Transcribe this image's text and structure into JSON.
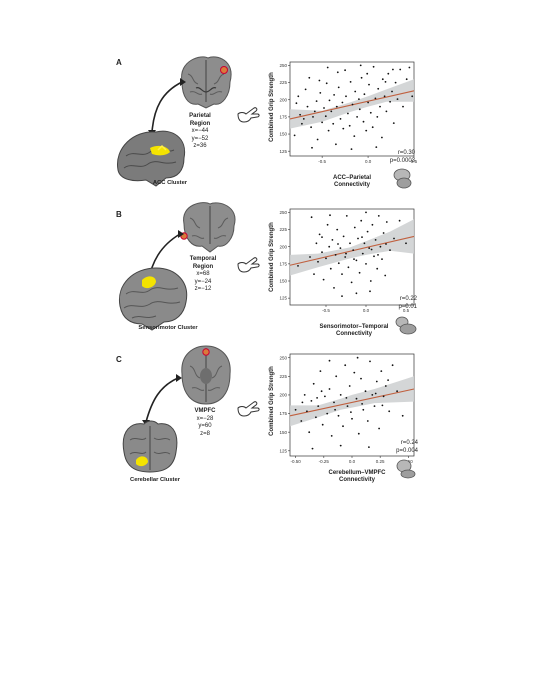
{
  "panels": [
    {
      "letter": "A",
      "region_name": "Parietal",
      "region_name2": "Region",
      "coords": [
        "x=−44",
        "y=−52",
        "z=36"
      ],
      "cluster": "ACC Cluster",
      "r_text": "r=0.30",
      "p_text": "p=0.0003"
    },
    {
      "letter": "B",
      "region_name": "Temporal",
      "region_name2": "Region",
      "coords": [
        "x=68",
        "y=−24",
        "z=−12"
      ],
      "cluster": "Sensorimotor Cluster",
      "r_text": "r=0.22",
      "p_text": "p=0.01"
    },
    {
      "letter": "C",
      "region_name": "VMPFC",
      "region_name2": "",
      "coords": [
        "x=−28",
        "y=60",
        "z=8"
      ],
      "cluster": "Cerebellar Cluster",
      "r_text": "r=0.24",
      "p_text": "p=0.004"
    }
  ],
  "chart_data": [
    {
      "type": "scatter",
      "ylabel": "Combined Grip Strength",
      "xlabel_line1": "ACC–Parietal",
      "xlabel_line2": "Connectivity",
      "xlim": [
        -0.85,
        0.5
      ],
      "ylim": [
        118,
        255
      ],
      "xticks": [
        "-0.5",
        "0.0",
        "0.5"
      ],
      "xtick_values": [
        -0.5,
        0.0,
        0.5
      ],
      "yticks": [
        "125",
        "150",
        "175",
        "200",
        "225",
        "250"
      ],
      "ytick_values": [
        125,
        150,
        175,
        200,
        225,
        250
      ],
      "fit": {
        "x": [
          -0.85,
          0.5
        ],
        "y": [
          172,
          213
        ]
      },
      "ci": {
        "x": [
          -0.85,
          -0.5,
          -0.2,
          0.0,
          0.2,
          0.5
        ],
        "upper": [
          186,
          184,
          196,
          205,
          215,
          230
        ],
        "lower": [
          158,
          168,
          182,
          190,
          197,
          197
        ]
      },
      "color_fit": "#c0603f",
      "color_ci": "#cfd2d3",
      "color_points": "#111111",
      "points": [
        [
          -0.8,
          148
        ],
        [
          -0.78,
          195
        ],
        [
          -0.76,
          205
        ],
        [
          -0.74,
          178
        ],
        [
          -0.72,
          165
        ],
        [
          -0.7,
          172
        ],
        [
          -0.68,
          215
        ],
        [
          -0.66,
          190
        ],
        [
          -0.64,
          232
        ],
        [
          -0.62,
          160
        ],
        [
          -0.6,
          175
        ],
        [
          -0.58,
          183
        ],
        [
          -0.56,
          198
        ],
        [
          -0.55,
          142
        ],
        [
          -0.52,
          210
        ],
        [
          -0.5,
          167
        ],
        [
          -0.48,
          188
        ],
        [
          -0.46,
          176
        ],
        [
          -0.45,
          224
        ],
        [
          -0.43,
          155
        ],
        [
          -0.42,
          199
        ],
        [
          -0.4,
          183
        ],
        [
          -0.38,
          165
        ],
        [
          -0.37,
          207
        ],
        [
          -0.35,
          135
        ],
        [
          -0.34,
          190
        ],
        [
          -0.32,
          218
        ],
        [
          -0.3,
          172
        ],
        [
          -0.28,
          196
        ],
        [
          -0.27,
          158
        ],
        [
          -0.25,
          243
        ],
        [
          -0.24,
          205
        ],
        [
          -0.22,
          180
        ],
        [
          -0.2,
          162
        ],
        [
          -0.19,
          226
        ],
        [
          -0.17,
          193
        ],
        [
          -0.15,
          147
        ],
        [
          -0.14,
          212
        ],
        [
          -0.12,
          175
        ],
        [
          -0.1,
          201
        ],
        [
          -0.09,
          186
        ],
        [
          -0.07,
          232
        ],
        [
          -0.05,
          168
        ],
        [
          -0.04,
          208
        ],
        [
          -0.02,
          155
        ],
        [
          0.0,
          196
        ],
        [
          0.01,
          222
        ],
        [
          0.03,
          181
        ],
        [
          0.05,
          160
        ],
        [
          0.06,
          248
        ],
        [
          0.08,
          202
        ],
        [
          0.1,
          175
        ],
        [
          0.11,
          216
        ],
        [
          0.13,
          190
        ],
        [
          0.15,
          145
        ],
        [
          0.16,
          230
        ],
        [
          0.18,
          205
        ],
        [
          0.2,
          183
        ],
        [
          0.22,
          238
        ],
        [
          0.24,
          197
        ],
        [
          0.26,
          212
        ],
        [
          0.28,
          166
        ],
        [
          0.3,
          225
        ],
        [
          0.32,
          201
        ],
        [
          0.35,
          244
        ],
        [
          0.38,
          190
        ],
        [
          0.42,
          230
        ],
        [
          0.45,
          247
        ],
        [
          0.48,
          205
        ],
        [
          -0.33,
          240
        ],
        [
          -0.61,
          130
        ],
        [
          -0.18,
          128
        ],
        [
          0.09,
          131
        ],
        [
          -0.44,
          247
        ],
        [
          -0.01,
          238
        ],
        [
          0.27,
          244
        ],
        [
          -0.53,
          228
        ],
        [
          -0.08,
          250
        ],
        [
          0.19,
          226
        ]
      ]
    },
    {
      "type": "scatter",
      "ylabel": "Combined Grip Strength",
      "xlabel_line1": "Sensorimotor–Temporal",
      "xlabel_line2": "Connectivity",
      "xlim": [
        -0.95,
        0.6
      ],
      "ylim": [
        115,
        255
      ],
      "xticks": [
        "-0.5",
        "0.0",
        "0.5"
      ],
      "xtick_values": [
        -0.5,
        0.0,
        0.5
      ],
      "yticks": [
        "125",
        "150",
        "175",
        "200",
        "225",
        "250"
      ],
      "ytick_values": [
        125,
        150,
        175,
        200,
        225,
        250
      ],
      "fit": {
        "x": [
          -0.95,
          0.6
        ],
        "y": [
          173,
          215
        ]
      },
      "ci": {
        "x": [
          -0.95,
          -0.6,
          -0.2,
          0.0,
          0.3,
          0.6
        ],
        "upper": [
          188,
          190,
          199,
          208,
          222,
          240
        ],
        "lower": [
          158,
          170,
          183,
          188,
          194,
          190
        ]
      },
      "color_fit": "#c0603f",
      "color_ci": "#cfd2d3",
      "color_points": "#111111",
      "points": [
        [
          -0.85,
          172
        ],
        [
          -0.7,
          185
        ],
        [
          -0.68,
          243
        ],
        [
          -0.65,
          160
        ],
        [
          -0.62,
          205
        ],
        [
          -0.6,
          178
        ],
        [
          -0.58,
          218
        ],
        [
          -0.55,
          192
        ],
        [
          -0.53,
          152
        ],
        [
          -0.5,
          183
        ],
        [
          -0.48,
          232
        ],
        [
          -0.46,
          200
        ],
        [
          -0.44,
          168
        ],
        [
          -0.42,
          210
        ],
        [
          -0.4,
          140
        ],
        [
          -0.38,
          188
        ],
        [
          -0.36,
          225
        ],
        [
          -0.34,
          176
        ],
        [
          -0.32,
          198
        ],
        [
          -0.3,
          160
        ],
        [
          -0.28,
          215
        ],
        [
          -0.26,
          185
        ],
        [
          -0.24,
          245
        ],
        [
          -0.22,
          170
        ],
        [
          -0.2,
          205
        ],
        [
          -0.18,
          148
        ],
        [
          -0.16,
          195
        ],
        [
          -0.14,
          228
        ],
        [
          -0.12,
          180
        ],
        [
          -0.1,
          212
        ],
        [
          -0.08,
          162
        ],
        [
          -0.06,
          238
        ],
        [
          -0.04,
          190
        ],
        [
          -0.02,
          205
        ],
        [
          0.0,
          175
        ],
        [
          0.02,
          222
        ],
        [
          0.04,
          198
        ],
        [
          0.06,
          150
        ],
        [
          0.08,
          232
        ],
        [
          0.1,
          186
        ],
        [
          0.12,
          210
        ],
        [
          0.14,
          168
        ],
        [
          0.16,
          245
        ],
        [
          0.18,
          200
        ],
        [
          0.2,
          182
        ],
        [
          0.22,
          220
        ],
        [
          0.24,
          158
        ],
        [
          0.26,
          236
        ],
        [
          0.3,
          195
        ],
        [
          0.35,
          212
        ],
        [
          0.42,
          238
        ],
        [
          0.5,
          205
        ],
        [
          -0.3,
          128
        ],
        [
          -0.12,
          132
        ],
        [
          0.05,
          135
        ],
        [
          -0.45,
          246
        ],
        [
          0.0,
          250
        ],
        [
          -0.25,
          190
        ],
        [
          -0.15,
          182
        ],
        [
          -0.05,
          214
        ],
        [
          0.07,
          196
        ],
        [
          -0.35,
          204
        ],
        [
          -0.55,
          214
        ],
        [
          0.15,
          188
        ],
        [
          0.25,
          204
        ]
      ]
    },
    {
      "type": "scatter",
      "ylabel": "Combined Grip Strength",
      "xlabel_line1": "Cerebellum–VMPFC",
      "xlabel_line2": "Connectivity",
      "xlim": [
        -0.55,
        0.55
      ],
      "ylim": [
        118,
        255
      ],
      "xticks": [
        "-0.50",
        "-0.25",
        "0.0",
        "0.25",
        "0.50"
      ],
      "xtick_values": [
        -0.5,
        -0.25,
        0.0,
        0.25,
        0.5
      ],
      "yticks": [
        "125",
        "150",
        "175",
        "200",
        "225",
        "250"
      ],
      "ytick_values": [
        125,
        150,
        175,
        200,
        225,
        250
      ],
      "fit": {
        "x": [
          -0.55,
          0.55
        ],
        "y": [
          172,
          208
        ]
      },
      "ci": {
        "x": [
          -0.55,
          -0.3,
          -0.1,
          0.0,
          0.2,
          0.55
        ],
        "upper": [
          186,
          186,
          195,
          200,
          208,
          225
        ],
        "lower": [
          158,
          170,
          180,
          183,
          189,
          191
        ]
      },
      "color_fit": "#c0603f",
      "color_ci": "#cfd2d3",
      "color_points": "#111111",
      "points": [
        [
          -0.5,
          180
        ],
        [
          -0.45,
          165
        ],
        [
          -0.42,
          200
        ],
        [
          -0.4,
          178
        ],
        [
          -0.38,
          150
        ],
        [
          -0.36,
          192
        ],
        [
          -0.34,
          215
        ],
        [
          -0.32,
          170
        ],
        [
          -0.3,
          185
        ],
        [
          -0.28,
          232
        ],
        [
          -0.26,
          160
        ],
        [
          -0.24,
          198
        ],
        [
          -0.22,
          175
        ],
        [
          -0.2,
          208
        ],
        [
          -0.18,
          145
        ],
        [
          -0.16,
          190
        ],
        [
          -0.14,
          225
        ],
        [
          -0.12,
          172
        ],
        [
          -0.1,
          200
        ],
        [
          -0.08,
          158
        ],
        [
          -0.06,
          240
        ],
        [
          -0.04,
          185
        ],
        [
          -0.02,
          212
        ],
        [
          0.0,
          168
        ],
        [
          0.02,
          230
        ],
        [
          0.04,
          195
        ],
        [
          0.06,
          148
        ],
        [
          0.08,
          222
        ],
        [
          0.1,
          180
        ],
        [
          0.12,
          205
        ],
        [
          0.14,
          165
        ],
        [
          0.16,
          245
        ],
        [
          0.18,
          200
        ],
        [
          0.2,
          185
        ],
        [
          0.22,
          218
        ],
        [
          0.24,
          155
        ],
        [
          0.26,
          232
        ],
        [
          0.28,
          198
        ],
        [
          0.3,
          212
        ],
        [
          0.33,
          178
        ],
        [
          0.36,
          240
        ],
        [
          0.4,
          205
        ],
        [
          0.45,
          172
        ],
        [
          -0.35,
          128
        ],
        [
          -0.1,
          132
        ],
        [
          0.15,
          130
        ],
        [
          -0.2,
          246
        ],
        [
          0.05,
          250
        ],
        [
          -0.27,
          205
        ],
        [
          -0.15,
          180
        ],
        [
          -0.05,
          196
        ],
        [
          0.09,
          188
        ],
        [
          0.21,
          202
        ],
        [
          -0.44,
          190
        ],
        [
          0.32,
          220
        ],
        [
          -0.31,
          196
        ],
        [
          -0.01,
          177
        ],
        [
          0.27,
          186
        ]
      ]
    }
  ]
}
